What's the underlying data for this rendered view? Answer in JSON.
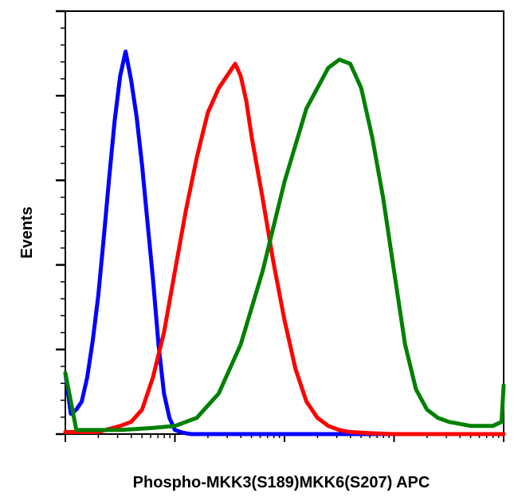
{
  "chart_data": {
    "type": "line",
    "title": "",
    "xlabel": "Phospho-MKK3(S189)MKK6(S207) APC",
    "ylabel": "Events",
    "x_scale": "log",
    "xlim": [
      0,
      4
    ],
    "ylim": [
      0,
      100
    ],
    "grid": false,
    "legend": "none",
    "series": [
      {
        "color": "#0000ff",
        "x": [
          0.0,
          0.05,
          0.1,
          0.15,
          0.2,
          0.25,
          0.3,
          0.35,
          0.4,
          0.45,
          0.5,
          0.55,
          0.6,
          0.65,
          0.7,
          0.75,
          0.8,
          0.85,
          0.9,
          0.95,
          1.0,
          1.05,
          1.1,
          1.15,
          1.2,
          1.3,
          1.5,
          2.0,
          3.0,
          4.0
        ],
        "values": [
          15,
          5,
          6,
          8,
          14,
          23,
          34,
          48,
          63,
          77,
          88,
          94,
          87,
          78,
          66,
          52,
          38,
          22,
          10,
          4,
          1,
          0.5,
          0.2,
          0,
          0,
          0,
          0,
          0,
          0,
          0
        ]
      },
      {
        "color": "#ff0000",
        "x": [
          0.0,
          0.3,
          0.5,
          0.6,
          0.7,
          0.8,
          0.9,
          1.0,
          1.1,
          1.2,
          1.3,
          1.4,
          1.5,
          1.55,
          1.6,
          1.65,
          1.7,
          1.8,
          1.9,
          2.0,
          2.1,
          2.2,
          2.3,
          2.4,
          2.5,
          2.6,
          2.8,
          3.0,
          3.5,
          4.0
        ],
        "values": [
          0.5,
          0.5,
          2,
          3,
          6,
          14,
          25,
          40,
          55,
          68,
          79,
          85,
          89,
          91,
          88,
          82,
          73,
          58,
          42,
          28,
          16,
          8,
          4,
          2,
          1,
          0.5,
          0.2,
          0,
          0,
          0
        ]
      },
      {
        "color": "#008000",
        "x": [
          0.0,
          0.1,
          0.5,
          0.8,
          1.0,
          1.2,
          1.4,
          1.6,
          1.8,
          2.0,
          2.2,
          2.4,
          2.5,
          2.6,
          2.7,
          2.8,
          2.9,
          3.0,
          3.1,
          3.2,
          3.3,
          3.4,
          3.5,
          3.6,
          3.7,
          3.8,
          3.9,
          3.98,
          4.0
        ],
        "values": [
          15,
          1,
          1,
          1.5,
          2,
          4,
          10,
          22,
          40,
          62,
          80,
          90,
          92,
          91,
          85,
          73,
          58,
          40,
          22,
          11,
          6,
          4,
          3,
          2.5,
          2,
          2,
          2,
          3,
          12
        ]
      }
    ]
  }
}
